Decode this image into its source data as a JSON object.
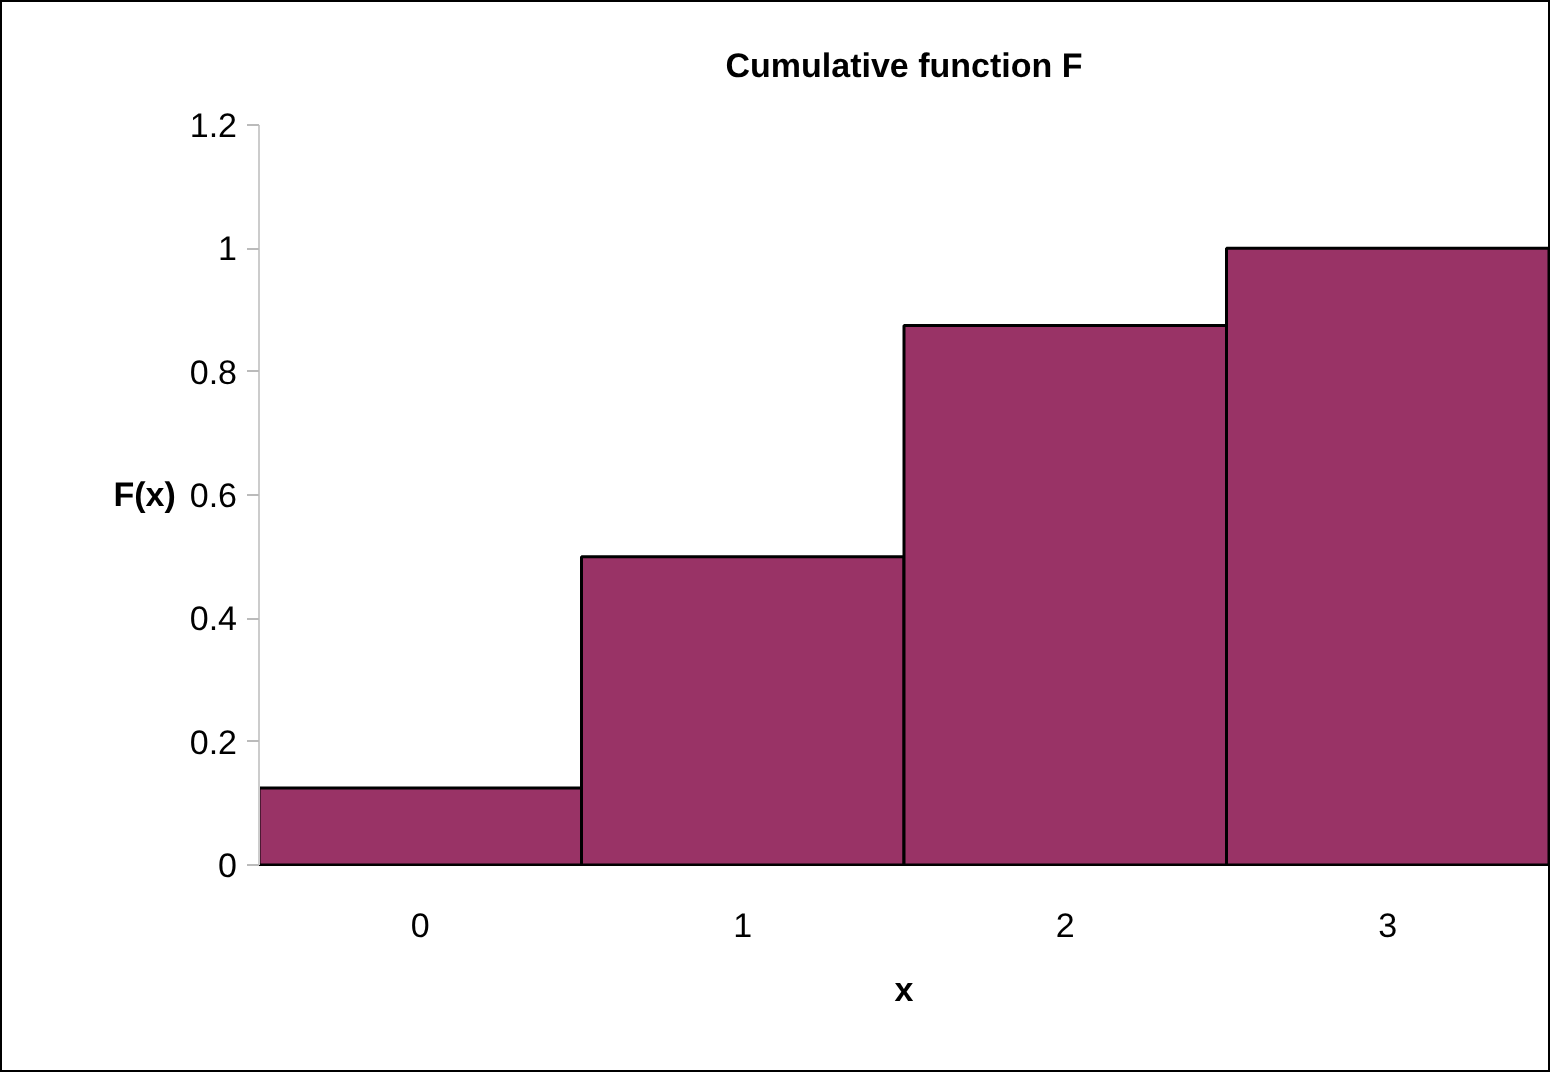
{
  "chart_data": {
    "type": "bar",
    "title": "Cumulative function F",
    "xlabel": "x",
    "ylabel": "F(x)",
    "categories": [
      "0",
      "1",
      "2",
      "3"
    ],
    "values": [
      0.125,
      0.5,
      0.875,
      1
    ],
    "color": "#993366",
    "ylim": [
      0,
      1.2
    ],
    "yticks": [
      0,
      0.2,
      0.4,
      0.6,
      0.8,
      1,
      1.2
    ],
    "grid": false
  }
}
